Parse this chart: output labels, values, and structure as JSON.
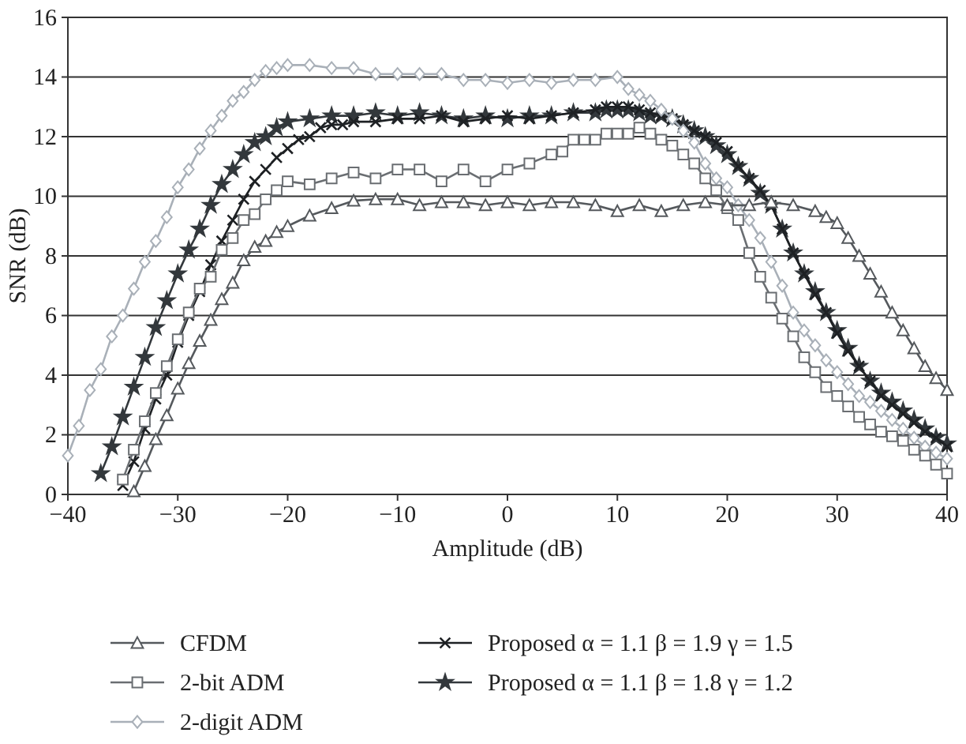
{
  "chart_data": {
    "type": "line",
    "xlabel": "Amplitude (dB)",
    "ylabel": "SNR (dB)",
    "xlim": [
      -40,
      40
    ],
    "ylim": [
      0,
      16
    ],
    "xticks": [
      {
        "value": -40,
        "label": "−40"
      },
      {
        "value": -30,
        "label": "−30"
      },
      {
        "value": -20,
        "label": "−20"
      },
      {
        "value": -10,
        "label": "−10"
      },
      0,
      10,
      20,
      30,
      40
    ],
    "yticks": [
      0,
      2,
      4,
      6,
      8,
      10,
      12,
      14,
      16
    ],
    "grid": "y",
    "legend": "bottom",
    "series": [
      {
        "name": "CFDM",
        "color": "#55595d",
        "marker": "triangle",
        "x": [
          -34,
          -33,
          -32,
          -31,
          -30,
          -29,
          -28,
          -27,
          -26,
          -25,
          -24,
          -23,
          -22,
          -21,
          -20,
          -18,
          -16,
          -14,
          -12,
          -10,
          -8,
          -6,
          -4,
          -2,
          0,
          2,
          4,
          6,
          8,
          10,
          12,
          14,
          16,
          18,
          20,
          22,
          24,
          26,
          28,
          29,
          30,
          31,
          32,
          33,
          34,
          35,
          36,
          37,
          38,
          39,
          40
        ],
        "values": [
          0.1,
          0.95,
          1.85,
          2.65,
          3.55,
          4.4,
          5.15,
          5.85,
          6.55,
          7.1,
          7.85,
          8.3,
          8.5,
          8.8,
          9.0,
          9.35,
          9.6,
          9.85,
          9.9,
          9.9,
          9.7,
          9.8,
          9.8,
          9.7,
          9.8,
          9.7,
          9.8,
          9.8,
          9.7,
          9.5,
          9.7,
          9.5,
          9.7,
          9.8,
          9.7,
          9.7,
          9.8,
          9.7,
          9.5,
          9.3,
          9.1,
          8.6,
          8.0,
          7.4,
          6.8,
          6.1,
          5.5,
          4.9,
          4.3,
          3.9,
          3.5
        ]
      },
      {
        "name": "2-bit ADM",
        "color": "#6a6e72",
        "marker": "square",
        "x": [
          -35,
          -34,
          -33,
          -32,
          -31,
          -30,
          -29,
          -28,
          -27,
          -26,
          -25,
          -24,
          -23,
          -22,
          -21,
          -20,
          -18,
          -16,
          -14,
          -12,
          -10,
          -8,
          -6,
          -4,
          -2,
          0,
          2,
          4,
          5,
          6,
          7,
          8,
          9,
          10,
          11,
          12,
          13,
          14,
          15,
          16,
          17,
          18,
          19,
          20,
          21,
          22,
          23,
          24,
          25,
          26,
          27,
          28,
          29,
          30,
          31,
          32,
          33,
          34,
          35,
          36,
          37,
          38,
          39,
          40
        ],
        "values": [
          0.5,
          1.5,
          2.45,
          3.4,
          4.3,
          5.2,
          6.1,
          6.9,
          7.3,
          8.2,
          8.6,
          9.2,
          9.4,
          9.9,
          10.2,
          10.5,
          10.4,
          10.6,
          10.8,
          10.6,
          10.9,
          10.9,
          10.5,
          10.9,
          10.5,
          10.9,
          11.1,
          11.4,
          11.5,
          11.9,
          11.9,
          11.9,
          12.1,
          12.1,
          12.1,
          12.3,
          12.1,
          11.9,
          11.7,
          11.4,
          11.1,
          10.6,
          10.2,
          9.6,
          9.2,
          8.1,
          7.3,
          6.6,
          5.9,
          5.3,
          4.6,
          4.1,
          3.6,
          3.3,
          2.95,
          2.6,
          2.35,
          2.1,
          1.95,
          1.8,
          1.5,
          1.3,
          1.0,
          0.7
        ]
      },
      {
        "name": "2-digit ADM",
        "color": "#a9b0b8",
        "marker": "diamond",
        "x": [
          -40,
          -39,
          -38,
          -37,
          -36,
          -35,
          -34,
          -33,
          -32,
          -31,
          -30,
          -29,
          -28,
          -27,
          -26,
          -25,
          -24,
          -23,
          -22,
          -21,
          -20,
          -18,
          -16,
          -14,
          -12,
          -10,
          -8,
          -6,
          -4,
          -2,
          0,
          2,
          4,
          6,
          8,
          10,
          11,
          12,
          13,
          14,
          15,
          16,
          17,
          18,
          19,
          20,
          21,
          22,
          23,
          24,
          25,
          26,
          27,
          28,
          29,
          30,
          31,
          32,
          33,
          34,
          35,
          36,
          37,
          38,
          39,
          40
        ],
        "values": [
          1.3,
          2.3,
          3.5,
          4.2,
          5.3,
          6.0,
          6.9,
          7.8,
          8.5,
          9.3,
          10.3,
          10.9,
          11.6,
          12.2,
          12.7,
          13.2,
          13.5,
          13.9,
          14.2,
          14.3,
          14.4,
          14.4,
          14.3,
          14.3,
          14.1,
          14.1,
          14.1,
          14.1,
          13.9,
          13.9,
          13.8,
          13.9,
          13.8,
          13.9,
          13.9,
          14.0,
          13.6,
          13.4,
          13.2,
          12.9,
          12.6,
          12.2,
          11.8,
          11.1,
          10.6,
          10.3,
          9.7,
          9.2,
          8.6,
          7.8,
          7.0,
          6.1,
          5.5,
          5.0,
          4.5,
          4.1,
          3.7,
          3.3,
          3.1,
          2.8,
          2.5,
          2.2,
          1.9,
          1.6,
          1.4,
          1.2
        ]
      },
      {
        "name": "Proposed α = 1.1 β = 1.9 γ = 1.5",
        "color": "#1e2124",
        "marker": "cross",
        "x": [
          -35,
          -34,
          -33,
          -32,
          -31,
          -30,
          -29,
          -28,
          -27,
          -26,
          -25,
          -24,
          -23,
          -22,
          -21,
          -20,
          -19,
          -18,
          -17,
          -16,
          -15,
          -14,
          -12,
          -10,
          -8,
          -6,
          -4,
          -2,
          0,
          2,
          4,
          6,
          8,
          9,
          10,
          11,
          12,
          13,
          14,
          15,
          16,
          17,
          18,
          19,
          20,
          21,
          22,
          23,
          24,
          25,
          26,
          27,
          28,
          29,
          30,
          31,
          32,
          33,
          34,
          35,
          36,
          37,
          38,
          39,
          40
        ],
        "values": [
          0.3,
          1.1,
          2.2,
          3.2,
          4.0,
          5.1,
          6.0,
          6.8,
          7.7,
          8.5,
          9.2,
          9.9,
          10.5,
          10.9,
          11.3,
          11.6,
          11.9,
          12.0,
          12.3,
          12.4,
          12.4,
          12.5,
          12.5,
          12.6,
          12.6,
          12.7,
          12.5,
          12.6,
          12.7,
          12.6,
          12.7,
          12.8,
          12.9,
          13.0,
          13.0,
          13.0,
          12.9,
          12.8,
          12.7,
          12.6,
          12.4,
          12.2,
          12.0,
          11.8,
          11.5,
          11.0,
          10.6,
          10.2,
          9.7,
          8.9,
          8.1,
          7.4,
          6.7,
          6.1,
          5.4,
          4.8,
          4.3,
          3.8,
          3.3,
          3.0,
          2.7,
          2.4,
          2.1,
          1.9,
          1.6
        ]
      },
      {
        "name": "Proposed α = 1.1 β = 1.8 γ = 1.2",
        "color": "#33383c",
        "marker": "star",
        "x": [
          -37,
          -36,
          -35,
          -34,
          -33,
          -32,
          -31,
          -30,
          -29,
          -28,
          -27,
          -26,
          -25,
          -24,
          -23,
          -22,
          -21,
          -20,
          -18,
          -16,
          -14,
          -12,
          -10,
          -8,
          -6,
          -4,
          -2,
          0,
          2,
          4,
          6,
          8,
          9,
          10,
          11,
          12,
          13,
          14,
          15,
          16,
          17,
          18,
          19,
          20,
          21,
          22,
          23,
          24,
          25,
          26,
          27,
          28,
          29,
          30,
          31,
          32,
          33,
          34,
          35,
          36,
          37,
          38,
          39,
          40
        ],
        "values": [
          0.7,
          1.6,
          2.6,
          3.6,
          4.6,
          5.6,
          6.5,
          7.4,
          8.2,
          8.9,
          9.7,
          10.4,
          10.9,
          11.4,
          11.8,
          12.0,
          12.3,
          12.5,
          12.6,
          12.7,
          12.7,
          12.8,
          12.7,
          12.8,
          12.7,
          12.6,
          12.7,
          12.6,
          12.7,
          12.7,
          12.8,
          12.8,
          12.9,
          12.9,
          12.9,
          12.8,
          12.7,
          12.7,
          12.6,
          12.4,
          12.2,
          12.0,
          11.7,
          11.4,
          11.0,
          10.6,
          10.1,
          9.7,
          8.9,
          8.1,
          7.4,
          6.8,
          6.1,
          5.5,
          4.9,
          4.3,
          3.8,
          3.4,
          3.1,
          2.8,
          2.5,
          2.2,
          1.9,
          1.7
        ]
      }
    ]
  }
}
